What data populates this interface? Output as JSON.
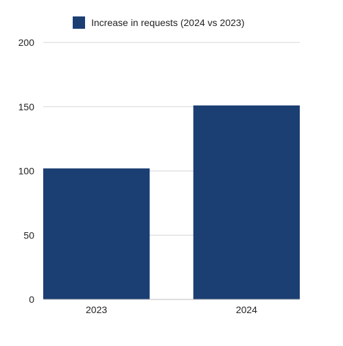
{
  "chart_data": {
    "type": "bar",
    "categories": [
      "2023",
      "2024"
    ],
    "series": [
      {
        "name": "Increase in requests (2024 vs 2023)",
        "values": [
          102,
          151
        ],
        "color": "#1c3f73"
      }
    ],
    "ylim": [
      0,
      200
    ],
    "yticks": [
      "0",
      "50",
      "100",
      "150",
      "200"
    ],
    "grid": true,
    "legend": "top-center"
  }
}
